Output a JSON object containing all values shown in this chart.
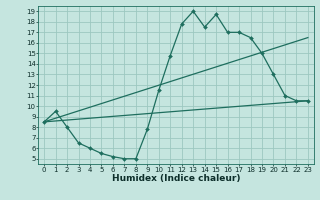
{
  "xlabel": "Humidex (Indice chaleur)",
  "bg_color": "#c5e5df",
  "grid_color": "#9dc8c0",
  "line_color": "#1e6e5e",
  "x_ticks": [
    0,
    1,
    2,
    3,
    4,
    5,
    6,
    7,
    8,
    9,
    10,
    11,
    12,
    13,
    14,
    15,
    16,
    17,
    18,
    19,
    20,
    21,
    22,
    23
  ],
  "y_ticks": [
    5,
    6,
    7,
    8,
    9,
    10,
    11,
    12,
    13,
    14,
    15,
    16,
    17,
    18,
    19
  ],
  "xlim": [
    -0.5,
    23.5
  ],
  "ylim": [
    4.5,
    19.5
  ],
  "line1_x": [
    0,
    1,
    2,
    3,
    4,
    5,
    6,
    7,
    8,
    9,
    10,
    11,
    12,
    13,
    14,
    15,
    16,
    17,
    18,
    19,
    20,
    21,
    22,
    23
  ],
  "line1_y": [
    8.5,
    9.5,
    8.0,
    6.5,
    6.0,
    5.5,
    5.2,
    5.0,
    5.0,
    7.8,
    11.5,
    14.8,
    17.8,
    19.0,
    17.5,
    18.7,
    17.0,
    17.0,
    16.5,
    15.0,
    13.0,
    11.0,
    10.5,
    10.5
  ],
  "line2_x": [
    0,
    23
  ],
  "line2_y": [
    8.5,
    16.5
  ],
  "line3_x": [
    0,
    23
  ],
  "line3_y": [
    8.5,
    10.5
  ],
  "tick_fontsize": 5.0,
  "xlabel_fontsize": 6.5,
  "linewidth": 0.9,
  "markersize": 2.0
}
